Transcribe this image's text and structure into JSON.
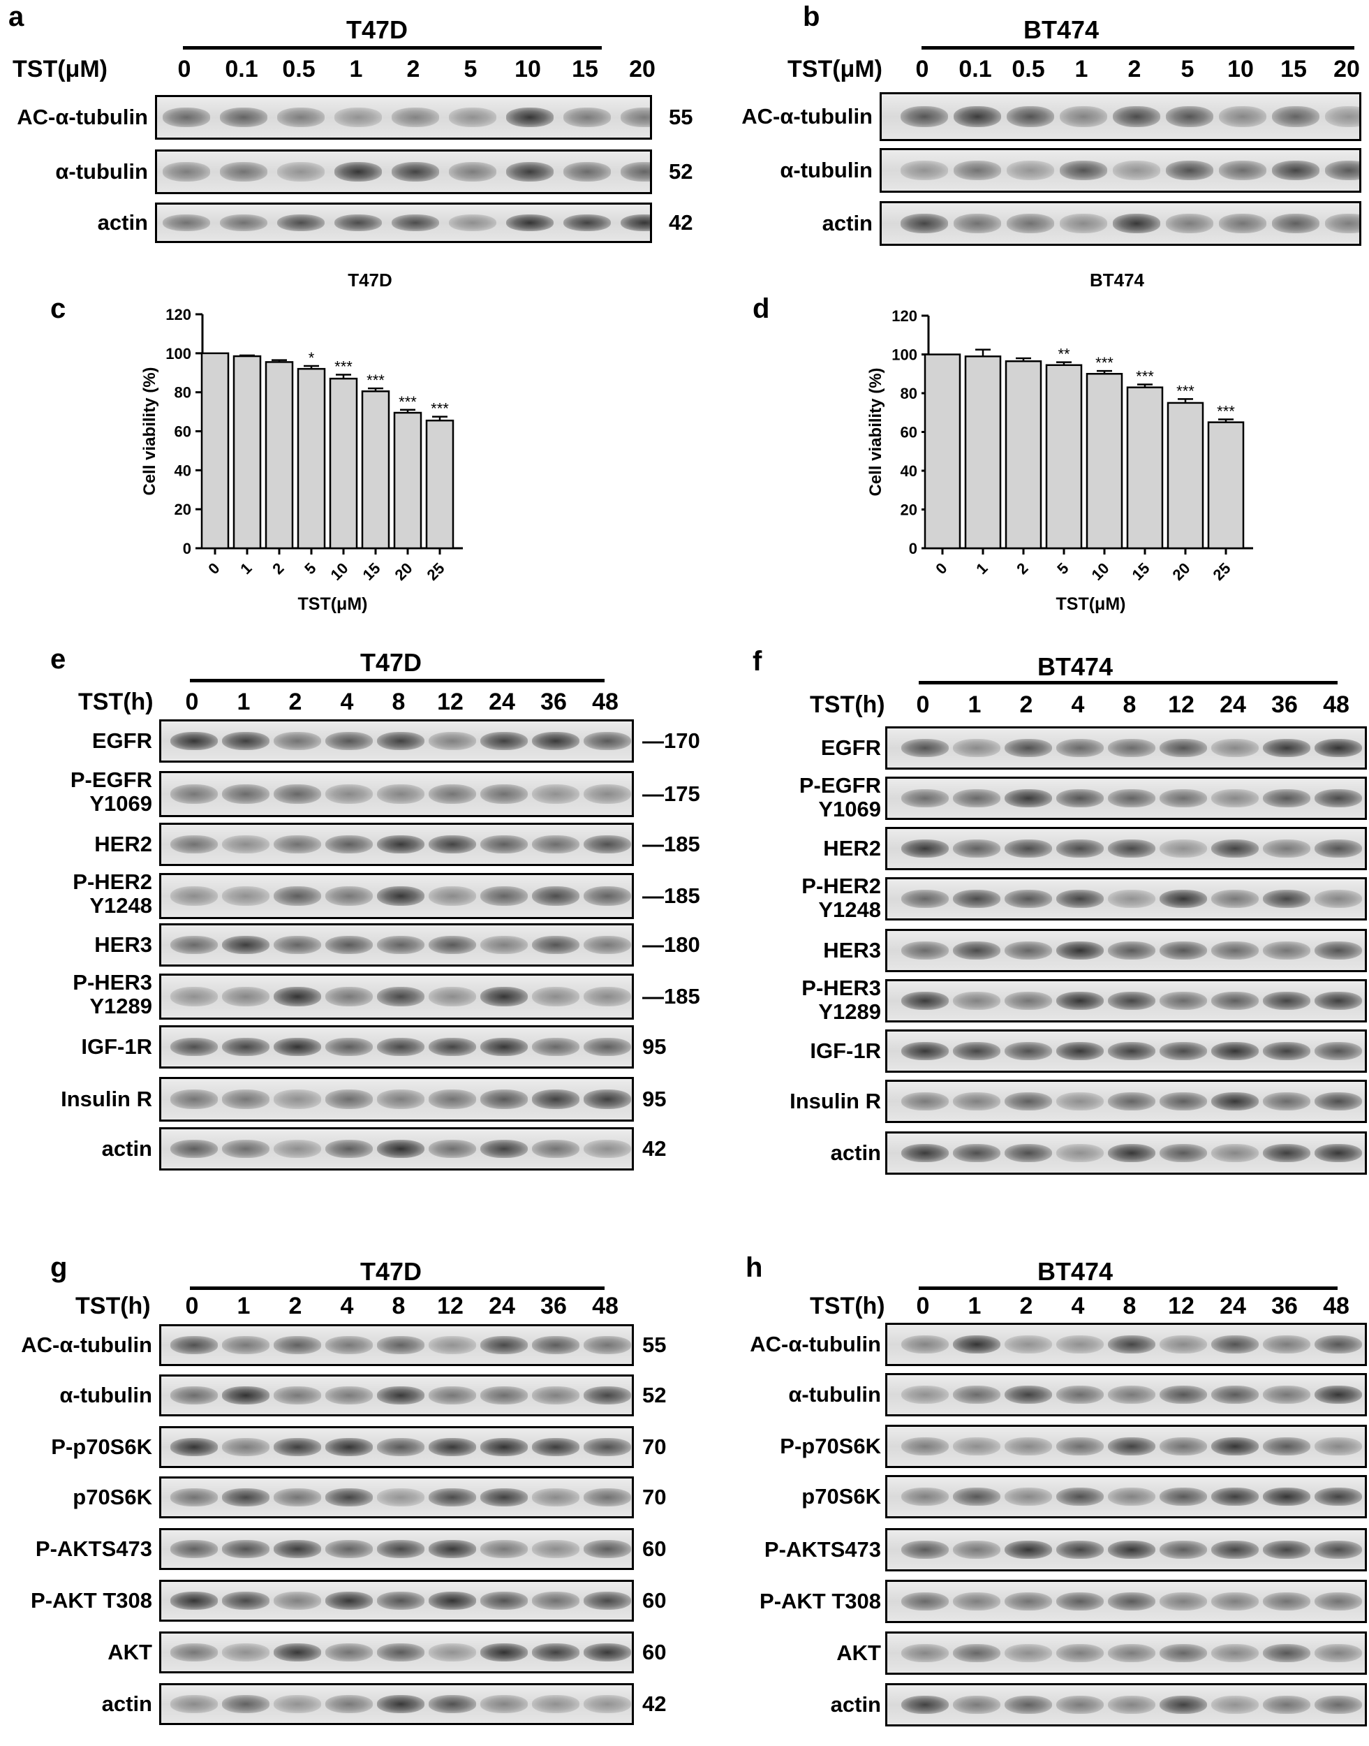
{
  "panels": [
    {
      "id": "a",
      "letter": "a",
      "cell": "T47D",
      "header": "TST(μM)",
      "lanes": [
        "0",
        "0.1",
        "0.5",
        "1",
        "2",
        "5",
        "10",
        "15",
        "20"
      ],
      "rows": [
        {
          "label": "AC-α-tubulin",
          "mw": "55"
        },
        {
          "label": "α-tubulin",
          "mw": "52"
        },
        {
          "label": "actin",
          "mw": "42"
        }
      ]
    },
    {
      "id": "b",
      "letter": "b",
      "cell": "BT474",
      "header": "TST(μM)",
      "lanes": [
        "0",
        "0.1",
        "0.5",
        "1",
        "2",
        "5",
        "10",
        "15",
        "20"
      ],
      "rows": [
        {
          "label": "AC-α-tubulin",
          "mw": ""
        },
        {
          "label": "α-tubulin",
          "mw": ""
        },
        {
          "label": "actin",
          "mw": ""
        }
      ]
    },
    {
      "id": "e",
      "letter": "e",
      "cell": "T47D",
      "header": "TST(h)",
      "lanes": [
        "0",
        "1",
        "2",
        "4",
        "8",
        "12",
        "24",
        "36",
        "48"
      ],
      "rows": [
        {
          "label": "EGFR",
          "mw": "—170"
        },
        {
          "label": "P-EGFR\nY1069",
          "mw": "—175"
        },
        {
          "label": "HER2",
          "mw": "—185"
        },
        {
          "label": "P-HER2\nY1248",
          "mw": "—185"
        },
        {
          "label": "HER3",
          "mw": "—180"
        },
        {
          "label": "P-HER3\nY1289",
          "mw": "—185"
        },
        {
          "label": "IGF-1R",
          "mw": "95"
        },
        {
          "label": "Insulin R",
          "mw": "95"
        },
        {
          "label": "actin",
          "mw": "42"
        }
      ]
    },
    {
      "id": "f",
      "letter": "f",
      "cell": "BT474",
      "header": "TST(h)",
      "lanes": [
        "0",
        "1",
        "2",
        "4",
        "8",
        "12",
        "24",
        "36",
        "48"
      ],
      "rows": [
        {
          "label": "EGFR",
          "mw": ""
        },
        {
          "label": "P-EGFR\nY1069",
          "mw": ""
        },
        {
          "label": "HER2",
          "mw": ""
        },
        {
          "label": "P-HER2\nY1248",
          "mw": ""
        },
        {
          "label": "HER3",
          "mw": ""
        },
        {
          "label": "P-HER3\nY1289",
          "mw": ""
        },
        {
          "label": "IGF-1R",
          "mw": ""
        },
        {
          "label": "Insulin R",
          "mw": ""
        },
        {
          "label": "actin",
          "mw": ""
        }
      ]
    },
    {
      "id": "g",
      "letter": "g",
      "cell": "T47D",
      "header": "TST(h)",
      "lanes": [
        "0",
        "1",
        "2",
        "4",
        "8",
        "12",
        "24",
        "36",
        "48"
      ],
      "rows": [
        {
          "label": "AC-α-tubulin",
          "mw": "55"
        },
        {
          "label": "α-tubulin",
          "mw": "52"
        },
        {
          "label": "P-p70S6K",
          "mw": "70"
        },
        {
          "label": "p70S6K",
          "mw": "70"
        },
        {
          "label": "P-AKTS473",
          "mw": "60"
        },
        {
          "label": "P-AKT T308",
          "mw": "60"
        },
        {
          "label": "AKT",
          "mw": "60"
        },
        {
          "label": "actin",
          "mw": "42"
        }
      ]
    },
    {
      "id": "h",
      "letter": "h",
      "cell": "BT474",
      "header": "TST(h)",
      "lanes": [
        "0",
        "1",
        "2",
        "4",
        "8",
        "12",
        "24",
        "36",
        "48"
      ],
      "rows": [
        {
          "label": "AC-α-tubulin",
          "mw": ""
        },
        {
          "label": "α-tubulin",
          "mw": ""
        },
        {
          "label": "P-p70S6K",
          "mw": ""
        },
        {
          "label": "p70S6K",
          "mw": ""
        },
        {
          "label": "P-AKTS473",
          "mw": ""
        },
        {
          "label": "P-AKT T308",
          "mw": ""
        },
        {
          "label": "AKT",
          "mw": ""
        },
        {
          "label": "actin",
          "mw": ""
        }
      ]
    }
  ],
  "chart_data": [
    {
      "id": "c",
      "letter": "c",
      "type": "bar",
      "title": "T47D",
      "categories": [
        "0",
        "1",
        "2",
        "5",
        "10",
        "15",
        "20",
        "25"
      ],
      "values": [
        100,
        98.5,
        95.5,
        92,
        87,
        80.5,
        69.5,
        65.5
      ],
      "errors": [
        0,
        0.4,
        1,
        1.5,
        2,
        1.5,
        1.5,
        2
      ],
      "significance": [
        "",
        "",
        "",
        "*",
        "***",
        "***",
        "***",
        "***"
      ],
      "xlabel": "TST(μM)",
      "ylabel": "Cell viability (%)",
      "ylim": [
        0,
        120
      ],
      "yticks": [
        0,
        20,
        40,
        60,
        80,
        100,
        120
      ],
      "bar_color": "#d3d3d3"
    },
    {
      "id": "d",
      "letter": "d",
      "type": "bar",
      "title": "BT474",
      "categories": [
        "0",
        "1",
        "2",
        "5",
        "10",
        "15",
        "20",
        "25"
      ],
      "values": [
        100,
        99,
        96.5,
        94.5,
        90,
        83,
        75,
        65
      ],
      "errors": [
        0,
        3.5,
        1.5,
        1.5,
        1.5,
        1.5,
        2,
        1.5
      ],
      "significance": [
        "",
        "",
        "",
        "**",
        "***",
        "***",
        "***",
        "***"
      ],
      "xlabel": "TST(μM)",
      "ylabel": "Cell viability (%)",
      "ylim": [
        0,
        120
      ],
      "yticks": [
        0,
        20,
        40,
        60,
        80,
        100,
        120
      ],
      "bar_color": "#d3d3d3"
    }
  ]
}
